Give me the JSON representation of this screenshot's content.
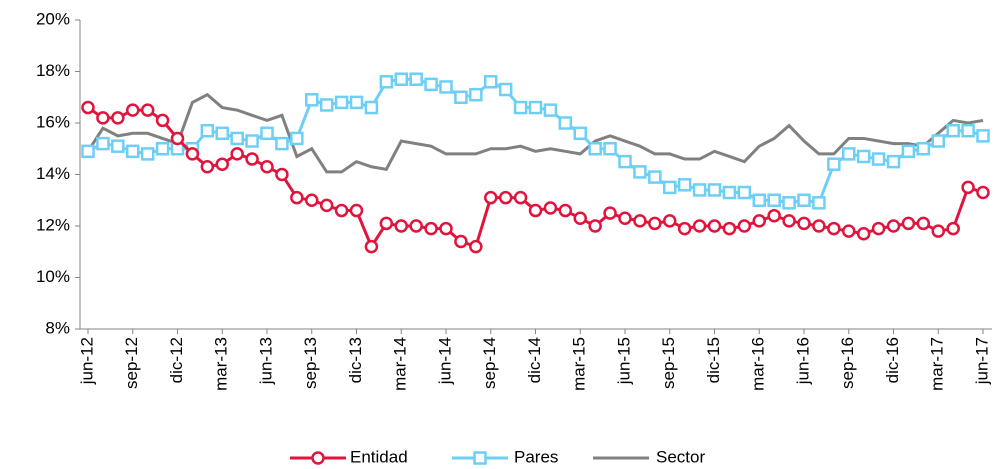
{
  "chart_data": {
    "type": "line",
    "categories": [
      "jun-12",
      null,
      null,
      "sep-12",
      null,
      null,
      "dic-12",
      null,
      null,
      "mar-13",
      null,
      null,
      "jun-13",
      null,
      null,
      "sep-13",
      null,
      null,
      "dic-13",
      null,
      null,
      "mar-14",
      null,
      null,
      "jun-14",
      null,
      null,
      "sep-14",
      null,
      null,
      "dic-14",
      null,
      null,
      "mar-15",
      null,
      null,
      "jun-15",
      null,
      null,
      "sep-15",
      null,
      null,
      "dic-15",
      null,
      null,
      "mar-16",
      null,
      null,
      "jun-16",
      null,
      null,
      "sep-16",
      null,
      null,
      "dic-16",
      null,
      null,
      "mar-17",
      null,
      null,
      "jun-17"
    ],
    "series": [
      {
        "name": "Entidad",
        "color": "#e0143c",
        "marker": "circle",
        "values": [
          16.6,
          16.2,
          16.2,
          16.5,
          16.5,
          16.1,
          15.4,
          14.8,
          14.3,
          14.4,
          14.8,
          14.6,
          14.3,
          14.0,
          13.1,
          13.0,
          12.8,
          12.6,
          12.6,
          11.2,
          12.1,
          12.0,
          12.0,
          11.9,
          11.9,
          11.4,
          11.2,
          13.1,
          13.1,
          13.1,
          12.6,
          12.7,
          12.6,
          12.3,
          12.0,
          12.5,
          12.3,
          12.2,
          12.1,
          12.2,
          11.9,
          12.0,
          12.0,
          11.9,
          12.0,
          12.2,
          12.4,
          12.2,
          12.1,
          12.0,
          11.9,
          11.8,
          11.7,
          11.9,
          12.0,
          12.1,
          12.1,
          11.8,
          11.9,
          13.5,
          13.3
        ]
      },
      {
        "name": "Pares",
        "color": "#6ecff6",
        "marker": "square",
        "values": [
          14.9,
          15.2,
          15.1,
          14.9,
          14.8,
          15.0,
          15.0,
          15.0,
          15.7,
          15.6,
          15.4,
          15.3,
          15.6,
          15.2,
          15.4,
          16.9,
          16.7,
          16.8,
          16.8,
          16.6,
          17.6,
          17.7,
          17.7,
          17.5,
          17.4,
          17.0,
          17.1,
          17.6,
          17.3,
          16.6,
          16.6,
          16.5,
          16.0,
          15.6,
          15.0,
          15.0,
          14.5,
          14.1,
          13.9,
          13.5,
          13.6,
          13.4,
          13.4,
          13.3,
          13.3,
          13.0,
          13.0,
          12.9,
          13.0,
          12.9,
          14.4,
          14.8,
          14.7,
          14.6,
          14.5,
          14.9,
          15.0,
          15.3,
          15.7,
          15.7,
          15.5
        ]
      },
      {
        "name": "Sector",
        "color": "#808080",
        "marker": "none",
        "values": [
          14.9,
          15.8,
          15.5,
          15.6,
          15.6,
          15.4,
          15.2,
          16.8,
          17.1,
          16.6,
          16.5,
          16.3,
          16.1,
          16.3,
          14.7,
          15.0,
          14.1,
          14.1,
          14.5,
          14.3,
          14.2,
          15.3,
          15.2,
          15.1,
          14.8,
          14.8,
          14.8,
          15.0,
          15.0,
          15.1,
          14.9,
          15.0,
          14.9,
          14.8,
          15.3,
          15.5,
          15.3,
          15.1,
          14.8,
          14.8,
          14.6,
          14.6,
          14.9,
          14.7,
          14.5,
          15.1,
          15.4,
          15.9,
          15.3,
          14.8,
          14.8,
          15.4,
          15.4,
          15.3,
          15.2,
          15.2,
          15.1,
          15.6,
          16.1,
          16.0,
          16.1
        ]
      }
    ],
    "ylim": [
      8,
      20
    ],
    "yticks": [
      {
        "value": 8,
        "label": "8%"
      },
      {
        "value": 10,
        "label": "10%"
      },
      {
        "value": 12,
        "label": "12%"
      },
      {
        "value": 14,
        "label": "14%"
      },
      {
        "value": 16,
        "label": "16%"
      },
      {
        "value": 18,
        "label": "18%"
      },
      {
        "value": 20,
        "label": "20%"
      }
    ],
    "grid": false,
    "legend": "bottom"
  }
}
